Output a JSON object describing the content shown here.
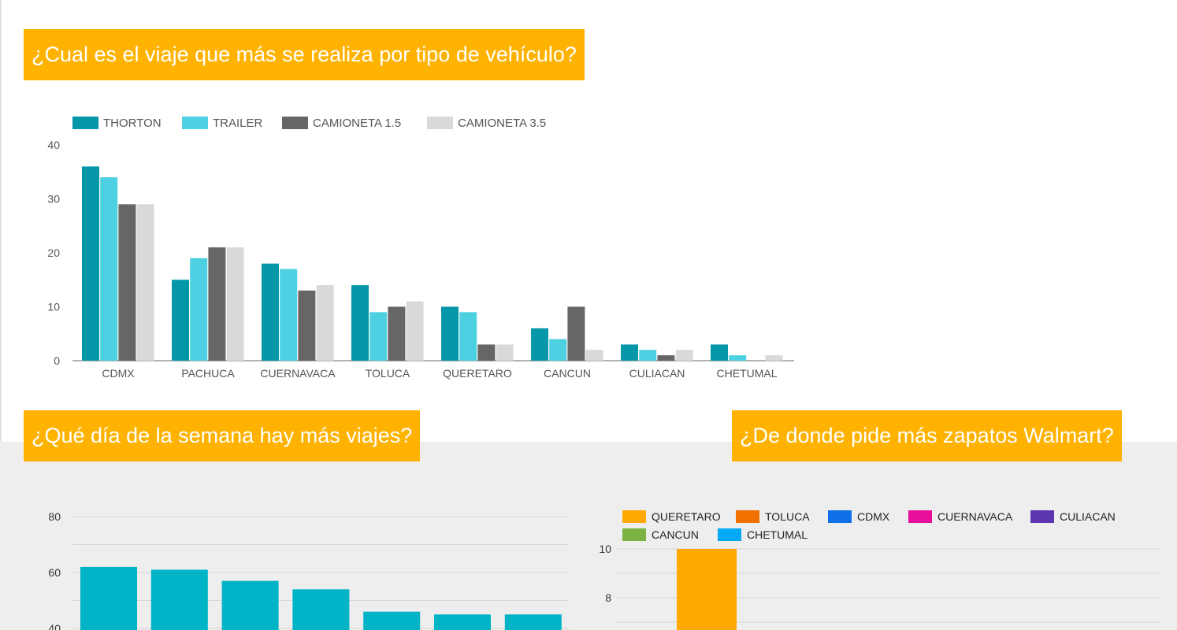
{
  "titles": {
    "vehicle": "¿Cual es el viaje que más se realiza por tipo de vehículo?",
    "weekday": "¿Qué día de la semana hay más viajes?",
    "walmart": "¿De donde pide más zapatos Walmart?"
  },
  "chart_data": [
    {
      "type": "bar",
      "title": "¿Cual es el viaje que más se realiza por tipo de vehículo?",
      "categories": [
        "CDMX",
        "PACHUCA",
        "CUERNAVACA",
        "TOLUCA",
        "QUERETARO",
        "CANCUN",
        "CULIACAN",
        "CHETUMAL"
      ],
      "series": [
        {
          "name": "THORTON",
          "color": "#0397a7",
          "values": [
            36,
            15,
            18,
            14,
            10,
            6,
            3,
            3
          ]
        },
        {
          "name": "TRAILER",
          "color": "#4dd0e1",
          "values": [
            34,
            19,
            17,
            9,
            9,
            4,
            2,
            1
          ]
        },
        {
          "name": "CAMIONETA 1.5",
          "color": "#666666",
          "values": [
            29,
            21,
            13,
            10,
            3,
            10,
            1,
            0
          ]
        },
        {
          "name": "CAMIONETA 3.5",
          "color": "#d9d9d9",
          "values": [
            29,
            21,
            14,
            11,
            3,
            2,
            2,
            1
          ]
        }
      ],
      "yticks": [
        0,
        10,
        20,
        30,
        40
      ],
      "ylim": [
        0,
        40
      ],
      "legend": "top-left"
    },
    {
      "type": "bar",
      "title": "¿Qué día de la semana hay más viajes?",
      "values": [
        62,
        61,
        57,
        54,
        46,
        45,
        45
      ],
      "color": "#00b4c8",
      "yticks": [
        40,
        60,
        80
      ],
      "ylim": [
        40,
        80
      ],
      "grid": true
    },
    {
      "type": "bar",
      "title": "¿De donde pide más zapatos Walmart?",
      "series": [
        {
          "name": "QUERETARO",
          "color": "#ffa800",
          "values": [
            10
          ]
        },
        {
          "name": "TOLUCA",
          "color": "#f07000",
          "values": []
        },
        {
          "name": "CDMX",
          "color": "#0f70e8",
          "values": []
        },
        {
          "name": "CUERNAVACA",
          "color": "#e8109a",
          "values": []
        },
        {
          "name": "CULIACAN",
          "color": "#5e35b1",
          "values": []
        },
        {
          "name": "CANCUN",
          "color": "#7cb342",
          "values": []
        },
        {
          "name": "CHETUMAL",
          "color": "#03a9f4",
          "values": []
        }
      ],
      "yticks": [
        8,
        10
      ],
      "ylim": [
        7,
        10
      ],
      "grid": true,
      "legend": "top"
    }
  ]
}
